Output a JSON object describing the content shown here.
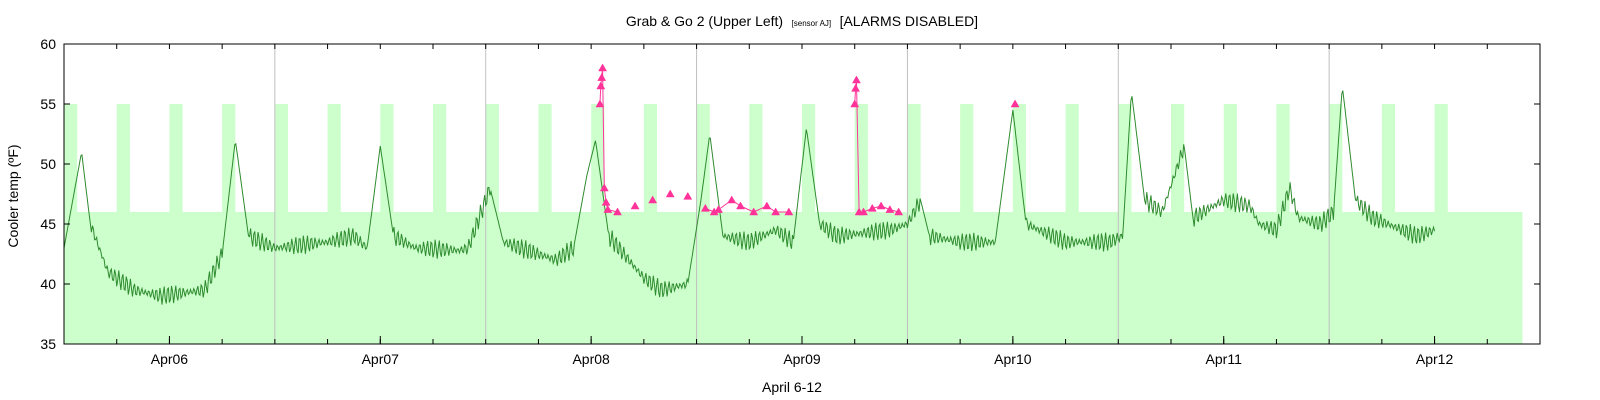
{
  "chart_data": {
    "type": "line",
    "title": {
      "main": "Grab & Go 2 (Upper Left)",
      "sensor": "[sensor AJ]",
      "status": "[ALARMS DISABLED]"
    },
    "xlabel": "April  6-12",
    "ylabel": "Cooler temp (ºF)",
    "ylim": [
      35,
      60
    ],
    "yticks": [
      35,
      40,
      45,
      50,
      55,
      60
    ],
    "xlim": [
      "2014-04-05 12:00",
      "2014-04-12 12:00"
    ],
    "x_ticks": [
      {
        "label": "Apr06",
        "t": "2014-04-06 00:00"
      },
      {
        "label": "Apr07",
        "t": "2014-04-07 00:00"
      },
      {
        "label": "Apr08",
        "t": "2014-04-08 00:00"
      },
      {
        "label": "Apr09",
        "t": "2014-04-09 00:00"
      },
      {
        "label": "Apr10",
        "t": "2014-04-10 00:00"
      },
      {
        "label": "Apr11",
        "t": "2014-04-11 00:00"
      },
      {
        "label": "Apr12",
        "t": "2014-04-12 00:00"
      }
    ],
    "day_separators": [
      "2014-04-06 12:00",
      "2014-04-07 12:00",
      "2014-04-08 12:00",
      "2014-04-09 12:00",
      "2014-04-10 12:00",
      "2014-04-11 12:00"
    ],
    "acceptable_band": {
      "ymin": 35,
      "ymax": 46,
      "elevated_ymax": 55,
      "end": "2014-04-12 10:00",
      "elevated_windows": [
        [
          "2014-04-05 12:00",
          "2014-04-05 13:30"
        ],
        [
          "2014-04-05 18:00",
          "2014-04-05 19:30"
        ],
        [
          "2014-04-06 00:00",
          "2014-04-06 01:30"
        ],
        [
          "2014-04-06 06:00",
          "2014-04-06 07:30"
        ],
        [
          "2014-04-06 12:00",
          "2014-04-06 13:30"
        ],
        [
          "2014-04-06 18:00",
          "2014-04-06 19:30"
        ],
        [
          "2014-04-07 00:00",
          "2014-04-07 01:30"
        ],
        [
          "2014-04-07 06:00",
          "2014-04-07 07:30"
        ],
        [
          "2014-04-07 12:00",
          "2014-04-07 13:30"
        ],
        [
          "2014-04-07 18:00",
          "2014-04-07 19:30"
        ],
        [
          "2014-04-08 00:00",
          "2014-04-08 01:30"
        ],
        [
          "2014-04-08 06:00",
          "2014-04-08 07:30"
        ],
        [
          "2014-04-08 12:00",
          "2014-04-08 13:30"
        ],
        [
          "2014-04-08 18:00",
          "2014-04-08 19:30"
        ],
        [
          "2014-04-09 00:00",
          "2014-04-09 01:30"
        ],
        [
          "2014-04-09 06:00",
          "2014-04-09 07:30"
        ],
        [
          "2014-04-09 12:00",
          "2014-04-09 13:30"
        ],
        [
          "2014-04-09 18:00",
          "2014-04-09 19:30"
        ],
        [
          "2014-04-10 00:00",
          "2014-04-10 01:30"
        ],
        [
          "2014-04-10 06:00",
          "2014-04-10 07:30"
        ],
        [
          "2014-04-10 12:00",
          "2014-04-10 13:30"
        ],
        [
          "2014-04-10 18:00",
          "2014-04-10 19:30"
        ],
        [
          "2014-04-11 00:00",
          "2014-04-11 01:30"
        ],
        [
          "2014-04-11 06:00",
          "2014-04-11 07:30"
        ],
        [
          "2014-04-11 12:00",
          "2014-04-11 13:30"
        ],
        [
          "2014-04-11 18:00",
          "2014-04-11 19:30"
        ],
        [
          "2014-04-12 00:00",
          "2014-04-12 01:30"
        ]
      ],
      "color": "#ccffcc"
    },
    "series": [
      {
        "style": "line",
        "color": "#2e8b2e",
        "noise_amplitude": 0.5,
        "points": [
          [
            "2014-04-05 12:00",
            43.0
          ],
          [
            "2014-04-05 13:00",
            47.0
          ],
          [
            "2014-04-05 14:00",
            51.0
          ],
          [
            "2014-04-05 15:00",
            45.0
          ],
          [
            "2014-04-05 17:00",
            41.0
          ],
          [
            "2014-04-05 20:00",
            39.5
          ],
          [
            "2014-04-05 23:00",
            39.0
          ],
          [
            "2014-04-06 04:00",
            39.5
          ],
          [
            "2014-04-06 06:00",
            42.5
          ],
          [
            "2014-04-06 07:30",
            52.0
          ],
          [
            "2014-04-06 09:00",
            44.0
          ],
          [
            "2014-04-06 12:00",
            43.0
          ],
          [
            "2014-04-06 18:00",
            43.5
          ],
          [
            "2014-04-06 21:00",
            44.0
          ],
          [
            "2014-04-06 22:30",
            43.0
          ],
          [
            "2014-04-07 00:00",
            51.5
          ],
          [
            "2014-04-07 01:30",
            44.0
          ],
          [
            "2014-04-07 04:00",
            43.0
          ],
          [
            "2014-04-07 09:00",
            42.8
          ],
          [
            "2014-04-07 10:00",
            43.0
          ],
          [
            "2014-04-07 12:30",
            48.0
          ],
          [
            "2014-04-07 14:00",
            43.5
          ],
          [
            "2014-04-07 20:00",
            42.0
          ],
          [
            "2014-04-07 22:00",
            43.0
          ],
          [
            "2014-04-07 23:30",
            49.0
          ],
          [
            "2014-04-08 00:30",
            52.0
          ],
          [
            "2014-04-08 02:00",
            44.0
          ],
          [
            "2014-04-08 06:00",
            40.5
          ],
          [
            "2014-04-08 08:00",
            39.5
          ],
          [
            "2014-04-08 11:00",
            40.0
          ],
          [
            "2014-04-08 12:30",
            47.0
          ],
          [
            "2014-04-08 13:30",
            52.5
          ],
          [
            "2014-04-08 15:00",
            44.0
          ],
          [
            "2014-04-08 18:00",
            43.5
          ],
          [
            "2014-04-08 21:00",
            44.5
          ],
          [
            "2014-04-08 23:00",
            43.5
          ],
          [
            "2014-04-09 00:30",
            53.0
          ],
          [
            "2014-04-09 02:00",
            45.0
          ],
          [
            "2014-04-09 04:00",
            44.0
          ],
          [
            "2014-04-09 10:00",
            44.5
          ],
          [
            "2014-04-09 12:00",
            45.0
          ],
          [
            "2014-04-09 13:30",
            47.0
          ],
          [
            "2014-04-09 14:30",
            44.0
          ],
          [
            "2014-04-09 18:00",
            43.5
          ],
          [
            "2014-04-09 22:00",
            43.5
          ],
          [
            "2014-04-10 00:00",
            54.5
          ],
          [
            "2014-04-10 01:30",
            45.0
          ],
          [
            "2014-04-10 06:00",
            43.5
          ],
          [
            "2014-04-10 11:00",
            43.5
          ],
          [
            "2014-04-10 12:30",
            44.0
          ],
          [
            "2014-04-10 13:30",
            56.0
          ],
          [
            "2014-04-10 15:00",
            47.0
          ],
          [
            "2014-04-10 17:00",
            46.0
          ],
          [
            "2014-04-10 19:30",
            51.5
          ],
          [
            "2014-04-10 20:30",
            45.5
          ],
          [
            "2014-04-11 00:00",
            47.0
          ],
          [
            "2014-04-11 03:00",
            46.5
          ],
          [
            "2014-04-11 04:00",
            45.0
          ],
          [
            "2014-04-11 06:00",
            44.5
          ],
          [
            "2014-04-11 07:30",
            48.0
          ],
          [
            "2014-04-11 08:30",
            45.5
          ],
          [
            "2014-04-11 11:00",
            45.0
          ],
          [
            "2014-04-11 12:30",
            46.0
          ],
          [
            "2014-04-11 13:30",
            56.5
          ],
          [
            "2014-04-11 15:00",
            47.0
          ],
          [
            "2014-04-11 17:00",
            45.5
          ],
          [
            "2014-04-11 22:00",
            44.0
          ],
          [
            "2014-04-12 00:00",
            44.5
          ]
        ]
      }
    ],
    "alarm_markers": {
      "color": "#ff3399",
      "marker": "triangle",
      "points": [
        [
          "2014-04-08 01:00",
          55.0
        ],
        [
          "2014-04-08 01:06",
          56.5
        ],
        [
          "2014-04-08 01:12",
          57.2
        ],
        [
          "2014-04-08 01:18",
          58.0
        ],
        [
          "2014-04-08 01:30",
          48.0
        ],
        [
          "2014-04-08 01:42",
          46.8
        ],
        [
          "2014-04-08 01:54",
          46.2
        ],
        [
          "2014-04-08 03:00",
          46.0
        ],
        [
          "2014-04-08 05:00",
          46.5
        ],
        [
          "2014-04-08 07:00",
          47.0
        ],
        [
          "2014-04-08 09:00",
          47.5
        ],
        [
          "2014-04-08 11:00",
          47.3
        ],
        [
          "2014-04-08 13:00",
          46.3
        ],
        [
          "2014-04-08 14:00",
          46.0
        ],
        [
          "2014-04-08 14:30",
          46.2
        ],
        [
          "2014-04-08 16:00",
          47.0
        ],
        [
          "2014-04-08 17:00",
          46.5
        ],
        [
          "2014-04-08 18:30",
          46.0
        ],
        [
          "2014-04-08 20:00",
          46.5
        ],
        [
          "2014-04-08 21:00",
          46.0
        ],
        [
          "2014-04-08 22:30",
          46.0
        ],
        [
          "2014-04-09 06:00",
          55.0
        ],
        [
          "2014-04-09 06:06",
          56.3
        ],
        [
          "2014-04-09 06:12",
          57.0
        ],
        [
          "2014-04-09 06:30",
          46.0
        ],
        [
          "2014-04-09 07:00",
          46.0
        ],
        [
          "2014-04-09 08:00",
          46.3
        ],
        [
          "2014-04-09 09:00",
          46.5
        ],
        [
          "2014-04-09 10:00",
          46.2
        ],
        [
          "2014-04-09 11:00",
          46.0
        ],
        [
          "2014-04-10 00:15",
          55.0
        ]
      ]
    },
    "grid": false,
    "legend": "none"
  }
}
